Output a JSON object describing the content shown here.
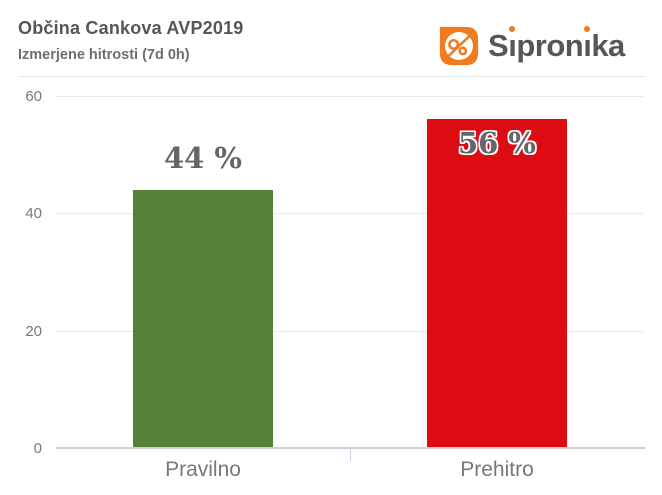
{
  "header": {
    "title": "Občina Cankova AVP2019",
    "subtitle": "Izmerjene hitrosti (7d 0h)"
  },
  "logo": {
    "brand": "Sipronika",
    "seg_s": "S",
    "seg_i1": "ı",
    "seg_mid": "pron",
    "seg_i2": "ı",
    "seg_end": "ka"
  },
  "colors": {
    "accent_orange": "#EF7D20",
    "bar_green": "#578136",
    "bar_red": "#DD0C12",
    "title_gray": "#54565B",
    "subtitle_gray": "#6C6E71",
    "tick_gray": "#797A7D",
    "value_gray": "#64666A",
    "gridline": "#EAEAEE",
    "axis_line": "#CBD0DE"
  },
  "chart_data": {
    "type": "bar",
    "title": "Občina Cankova AVP2019",
    "subtitle": "Izmerjene hitrosti (7d 0h)",
    "categories": [
      "Pravilno",
      "Prehitro"
    ],
    "values": [
      44,
      56
    ],
    "value_labels": [
      "44 %",
      "56 %"
    ],
    "value_label_positions": [
      "above",
      "inside"
    ],
    "bar_colors": [
      "#578136",
      "#DD0C12"
    ],
    "xlabel": "",
    "ylabel": "",
    "ylim": [
      0,
      60
    ],
    "yticks": [
      0,
      20,
      40,
      60
    ],
    "grid": true,
    "legend": false
  }
}
